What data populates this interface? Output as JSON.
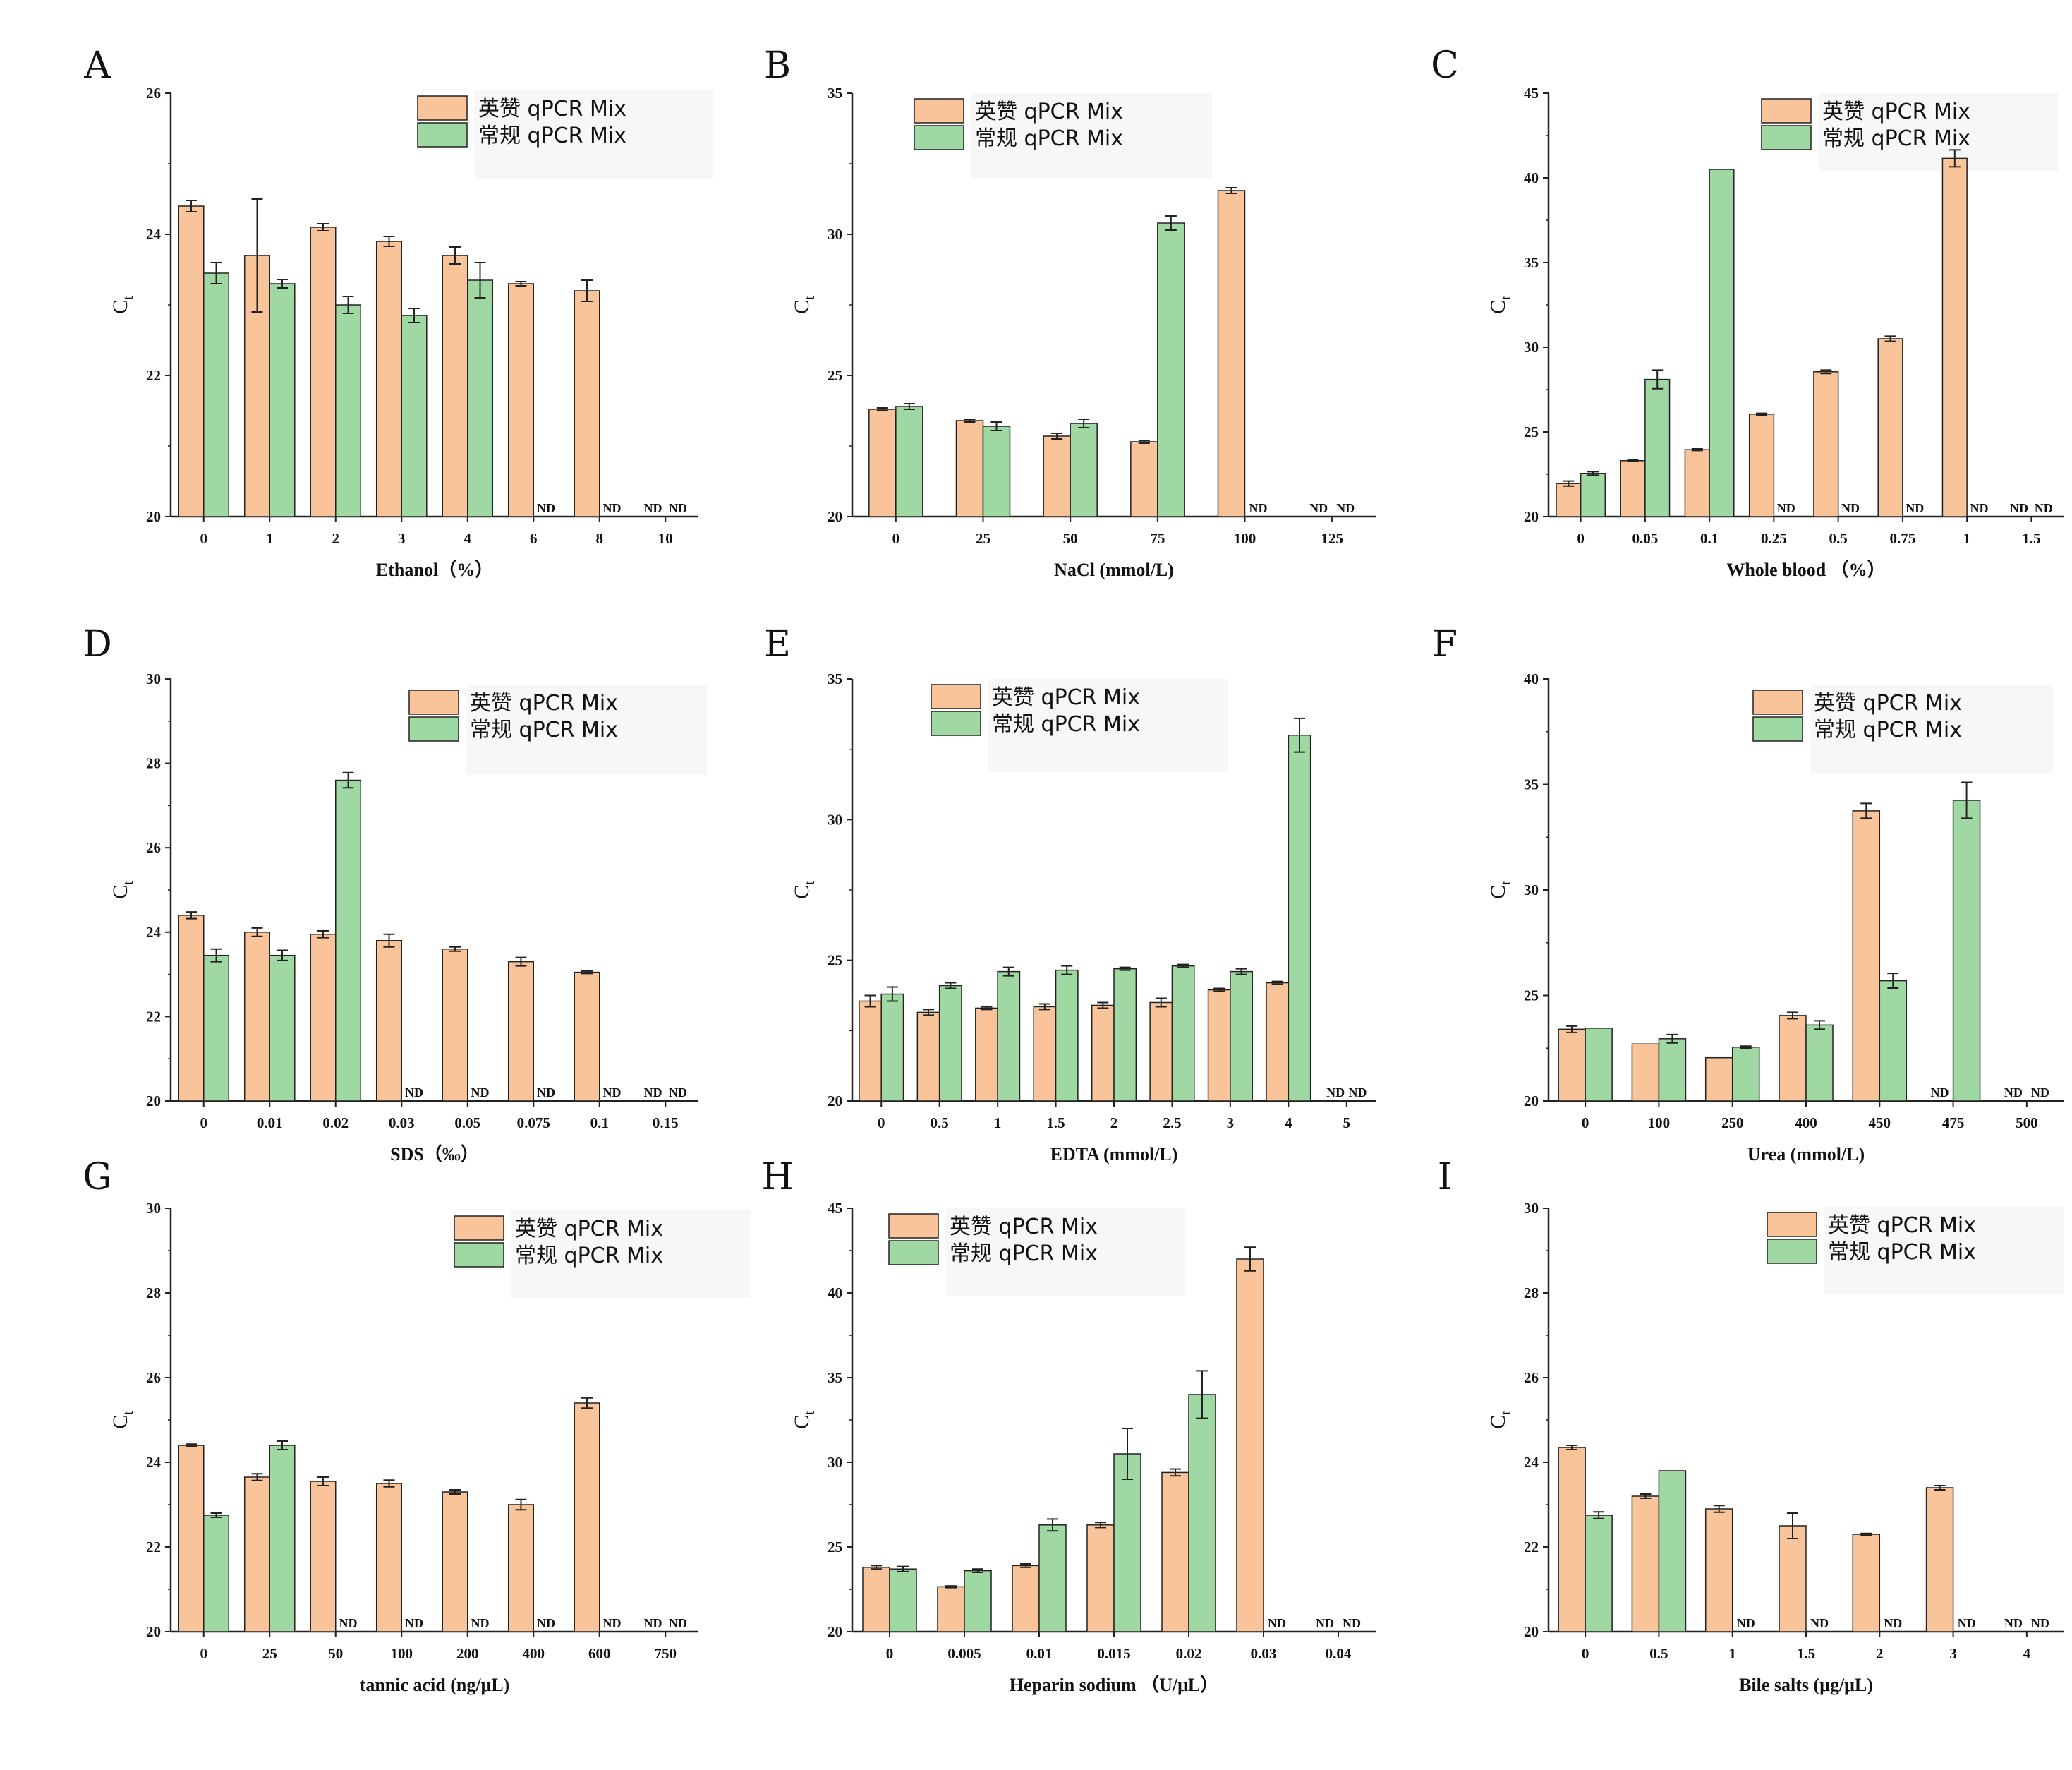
{
  "colors": {
    "series0": "#FAC49A",
    "series1": "#9FD8A2",
    "edge": "#222222",
    "legend_bg": "#F7F7F7"
  },
  "legend": [
    "英赞 qPCR Mix",
    "常规 qPCR Mix"
  ],
  "nd_label": "ND",
  "chart_data": [
    {
      "panel": "A",
      "type": "bar",
      "xlabel": "Ethanol（%）",
      "ylabel": "Ct",
      "ylim": [
        20,
        26
      ],
      "yticks": [
        20,
        22,
        24,
        26
      ],
      "categories": [
        "0",
        "1",
        "2",
        "3",
        "4",
        "6",
        "8",
        "10"
      ],
      "series": [
        {
          "name": "英赞 qPCR Mix",
          "values": [
            24.4,
            23.7,
            24.1,
            23.9,
            23.7,
            23.3,
            23.2,
            null
          ],
          "errors": [
            0.08,
            0.8,
            0.05,
            0.07,
            0.12,
            0.03,
            0.15,
            0
          ]
        },
        {
          "name": "常规 qPCR Mix",
          "values": [
            23.45,
            23.3,
            23.0,
            22.85,
            23.35,
            null,
            null,
            null
          ],
          "errors": [
            0.15,
            0.06,
            0.12,
            0.1,
            0.25,
            0,
            0,
            0
          ]
        }
      ]
    },
    {
      "panel": "B",
      "type": "bar",
      "xlabel": "NaCl (mmol/L)",
      "ylabel": "Ct",
      "ylim": [
        20,
        35
      ],
      "yticks": [
        20,
        25,
        30,
        35
      ],
      "categories": [
        "0",
        "25",
        "50",
        "75",
        "100",
        "125"
      ],
      "series": [
        {
          "name": "英赞 qPCR Mix",
          "values": [
            23.8,
            23.4,
            22.85,
            22.65,
            31.55,
            null
          ],
          "errors": [
            0.05,
            0.05,
            0.1,
            0.05,
            0.1,
            0
          ]
        },
        {
          "name": "常规 qPCR Mix",
          "values": [
            23.9,
            23.2,
            23.3,
            30.4,
            null,
            null
          ],
          "errors": [
            0.1,
            0.15,
            0.15,
            0.25,
            0,
            0
          ]
        }
      ]
    },
    {
      "panel": "C",
      "type": "bar",
      "xlabel": "Whole blood （%）",
      "ylabel": "Ct",
      "ylim": [
        20,
        45
      ],
      "yticks": [
        20,
        25,
        30,
        35,
        40,
        45
      ],
      "categories": [
        "0",
        "0.05",
        "0.1",
        "0.25",
        "0.5",
        "0.75",
        "1",
        "1.5"
      ],
      "series": [
        {
          "name": "英赞 qPCR Mix",
          "values": [
            21.95,
            23.3,
            23.95,
            26.05,
            28.55,
            30.5,
            41.15,
            null
          ],
          "errors": [
            0.15,
            0.05,
            0.05,
            0.05,
            0.1,
            0.15,
            0.5,
            0
          ]
        },
        {
          "name": "常规 qPCR Mix",
          "values": [
            22.55,
            28.1,
            40.5,
            null,
            null,
            null,
            null,
            null
          ],
          "errors": [
            0.1,
            0.55,
            0,
            0,
            0,
            0,
            0,
            0
          ]
        }
      ]
    },
    {
      "panel": "D",
      "type": "bar",
      "xlabel": "SDS（‰）",
      "ylabel": "Ct",
      "ylim": [
        20,
        30
      ],
      "yticks": [
        20,
        22,
        24,
        26,
        28,
        30
      ],
      "categories": [
        "0",
        "0.01",
        "0.02",
        "0.03",
        "0.05",
        "0.075",
        "0.1",
        "0.15"
      ],
      "series": [
        {
          "name": "英赞 qPCR Mix",
          "values": [
            24.4,
            24.0,
            23.95,
            23.8,
            23.6,
            23.3,
            23.05,
            null
          ],
          "errors": [
            0.08,
            0.1,
            0.08,
            0.15,
            0.05,
            0.1,
            0.03,
            0
          ]
        },
        {
          "name": "常规 qPCR Mix",
          "values": [
            23.45,
            23.45,
            27.6,
            null,
            null,
            null,
            null,
            null
          ],
          "errors": [
            0.15,
            0.12,
            0.18,
            0,
            0,
            0,
            0,
            0
          ]
        }
      ]
    },
    {
      "panel": "E",
      "type": "bar",
      "xlabel": "EDTA (mmol/L)",
      "ylabel": "Ct",
      "ylim": [
        20,
        35
      ],
      "yticks": [
        20,
        25,
        30,
        35
      ],
      "categories": [
        "0",
        "0.5",
        "1",
        "1.5",
        "2",
        "2.5",
        "3",
        "4",
        "5"
      ],
      "series": [
        {
          "name": "英赞 qPCR Mix",
          "values": [
            23.55,
            23.15,
            23.3,
            23.35,
            23.4,
            23.5,
            23.95,
            24.2,
            null
          ],
          "errors": [
            0.2,
            0.1,
            0.05,
            0.1,
            0.1,
            0.15,
            0.05,
            0.05,
            0
          ]
        },
        {
          "name": "常规 qPCR Mix",
          "values": [
            23.8,
            24.1,
            24.6,
            24.65,
            24.7,
            24.8,
            24.6,
            33.0,
            null
          ],
          "errors": [
            0.25,
            0.1,
            0.15,
            0.15,
            0.05,
            0.05,
            0.1,
            0.6,
            0
          ]
        }
      ]
    },
    {
      "panel": "F",
      "type": "bar",
      "xlabel": "Urea (mmol/L)",
      "ylabel": "Ct",
      "ylim": [
        20,
        40
      ],
      "yticks": [
        20,
        25,
        30,
        35,
        40
      ],
      "categories": [
        "0",
        "100",
        "250",
        "400",
        "450",
        "475",
        "500"
      ],
      "series": [
        {
          "name": "英赞 qPCR Mix",
          "values": [
            23.4,
            22.7,
            22.05,
            24.05,
            33.75,
            null,
            null
          ],
          "errors": [
            0.15,
            0,
            0,
            0.15,
            0.35,
            0,
            0
          ]
        },
        {
          "name": "常规 qPCR Mix",
          "values": [
            23.45,
            22.95,
            22.55,
            23.6,
            25.7,
            34.25,
            null
          ],
          "errors": [
            0,
            0.2,
            0.05,
            0.2,
            0.35,
            0.85,
            0
          ]
        }
      ]
    },
    {
      "panel": "G",
      "type": "bar",
      "xlabel": "tannic acid  (ng/μL)",
      "ylabel": "Ct",
      "ylim": [
        20,
        30
      ],
      "yticks": [
        20,
        22,
        24,
        26,
        28,
        30
      ],
      "categories": [
        "0",
        "25",
        "50",
        "100",
        "200",
        "400",
        "600",
        "750"
      ],
      "series": [
        {
          "name": "英赞 qPCR Mix",
          "values": [
            24.4,
            23.65,
            23.55,
            23.5,
            23.3,
            23.0,
            25.4,
            null
          ],
          "errors": [
            0.03,
            0.08,
            0.1,
            0.08,
            0.05,
            0.12,
            0.12,
            0
          ]
        },
        {
          "name": "常规 qPCR Mix",
          "values": [
            22.75,
            24.4,
            null,
            null,
            null,
            null,
            null,
            null
          ],
          "errors": [
            0.05,
            0.1,
            0,
            0,
            0,
            0,
            0,
            0
          ]
        }
      ]
    },
    {
      "panel": "H",
      "type": "bar",
      "xlabel": "Heparin sodium  （U/μL）",
      "ylabel": "Ct",
      "ylim": [
        20,
        45
      ],
      "yticks": [
        20,
        25,
        30,
        35,
        40,
        45
      ],
      "categories": [
        "0",
        "0.005",
        "0.01",
        "0.015",
        "0.02",
        "0.03",
        "0.04"
      ],
      "series": [
        {
          "name": "英赞 qPCR Mix",
          "values": [
            23.8,
            22.65,
            23.9,
            26.3,
            29.4,
            42.0,
            null
          ],
          "errors": [
            0.1,
            0.05,
            0.1,
            0.15,
            0.2,
            0.7,
            0
          ]
        },
        {
          "name": "常规 qPCR Mix",
          "values": [
            23.7,
            23.6,
            26.3,
            30.5,
            34.0,
            null,
            null
          ],
          "errors": [
            0.15,
            0.1,
            0.35,
            1.5,
            1.4,
            0,
            0
          ]
        }
      ]
    },
    {
      "panel": "I",
      "type": "bar",
      "xlabel": "Bile salts (μg/μL)",
      "ylabel": "Ct",
      "ylim": [
        20,
        30
      ],
      "yticks": [
        20,
        22,
        24,
        26,
        28,
        30
      ],
      "categories": [
        "0",
        "0.5",
        "1",
        "1.5",
        "2",
        "3",
        "4"
      ],
      "series": [
        {
          "name": "英赞 qPCR Mix",
          "values": [
            24.35,
            23.2,
            22.9,
            22.5,
            22.3,
            23.4,
            null
          ],
          "errors": [
            0.05,
            0.05,
            0.08,
            0.3,
            0.02,
            0.05,
            0
          ]
        },
        {
          "name": "常规 qPCR Mix",
          "values": [
            22.75,
            23.8,
            null,
            null,
            null,
            null,
            null
          ],
          "errors": [
            0.08,
            0,
            0,
            0,
            0,
            0,
            0
          ]
        }
      ]
    }
  ]
}
